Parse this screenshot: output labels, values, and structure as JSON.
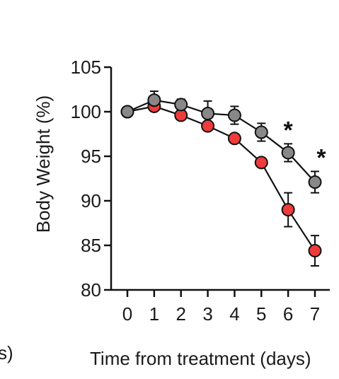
{
  "chart_data": {
    "type": "line",
    "title": "",
    "xlabel": "Time from treatment (days)",
    "ylabel": "Body Weight (%)",
    "x": [
      0,
      1,
      2,
      3,
      4,
      5,
      6,
      7
    ],
    "xlim": [
      0,
      7
    ],
    "ylim": [
      80,
      105
    ],
    "x_ticks": [
      "0",
      "1",
      "2",
      "3",
      "4",
      "5",
      "6",
      "7"
    ],
    "y_ticks": [
      "80",
      "85",
      "90",
      "95",
      "100",
      "105"
    ],
    "grid": false,
    "series": [
      {
        "color": "#888888",
        "values": [
          100,
          101.3,
          100.8,
          99.8,
          99.6,
          97.7,
          95.4,
          92.1
        ],
        "error": [
          0,
          1.0,
          0.6,
          1.4,
          1.0,
          1.0,
          1.0,
          1.2
        ]
      },
      {
        "color": "#ee3b3b",
        "values": [
          100,
          100.6,
          99.6,
          98.4,
          97.0,
          94.3,
          89.0,
          84.4
        ],
        "error": [
          0,
          0.3,
          0.3,
          0.3,
          0.3,
          0.3,
          1.9,
          1.7
        ]
      }
    ],
    "annotations": [
      {
        "text": "*",
        "x": 6
      },
      {
        "text": "*",
        "x": 7
      }
    ],
    "left_edge_fragment": "s)"
  }
}
